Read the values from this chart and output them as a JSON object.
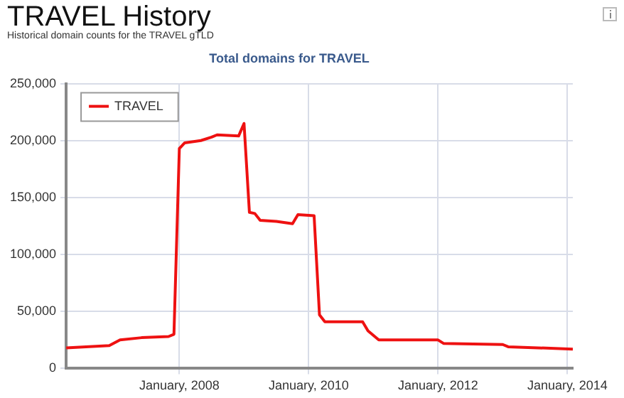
{
  "chart_data": {
    "type": "line",
    "title": "TRAVEL History",
    "subtitle": "Historical domain counts for the TRAVEL gTLD",
    "annotations": [
      "Total domains for TRAVEL"
    ],
    "x": [
      "2006-04",
      "2006-12",
      "2007-02",
      "2007-06",
      "2007-11",
      "2007-12",
      "2008-01",
      "2008-02",
      "2008-05",
      "2008-07",
      "2008-08",
      "2008-12",
      "2009-01",
      "2009-02",
      "2009-03",
      "2009-04",
      "2009-07",
      "2009-10",
      "2009-11",
      "2010-02",
      "2010-03",
      "2010-04",
      "2010-11",
      "2010-12",
      "2011-02",
      "2012-01",
      "2012-02",
      "2013-01",
      "2013-02",
      "2014-02"
    ],
    "series": [
      {
        "name": "TRAVEL",
        "color": "#ee1111",
        "values": [
          18000,
          20000,
          25000,
          27000,
          28000,
          30000,
          193000,
          198000,
          200000,
          203000,
          205000,
          204000,
          215000,
          137000,
          136000,
          130000,
          129000,
          127000,
          135000,
          134000,
          47000,
          41000,
          41000,
          33000,
          25000,
          25000,
          22000,
          21000,
          19000,
          17000
        ]
      }
    ],
    "xlim": [
      "2006-04",
      "2014-02"
    ],
    "xticks": [
      {
        "value": "2008-01-01",
        "label": "January, 2008"
      },
      {
        "value": "2010-01-01",
        "label": "January, 2010"
      },
      {
        "value": "2012-01-01",
        "label": "January, 2012"
      },
      {
        "value": "2014-01-01",
        "label": "January, 2014"
      }
    ],
    "ylim": [
      0,
      250000
    ],
    "yticks": [
      0,
      {
        "value": 50000,
        "label": "50,000"
      },
      {
        "value": 100000,
        "label": "100,000"
      },
      {
        "value": 150000,
        "label": "150,000"
      },
      {
        "value": 200000,
        "label": "200,000"
      },
      {
        "value": 250000,
        "label": "250,000"
      }
    ],
    "grid": true,
    "legend": "top left",
    "marker": "none",
    "line_style": "solid"
  }
}
